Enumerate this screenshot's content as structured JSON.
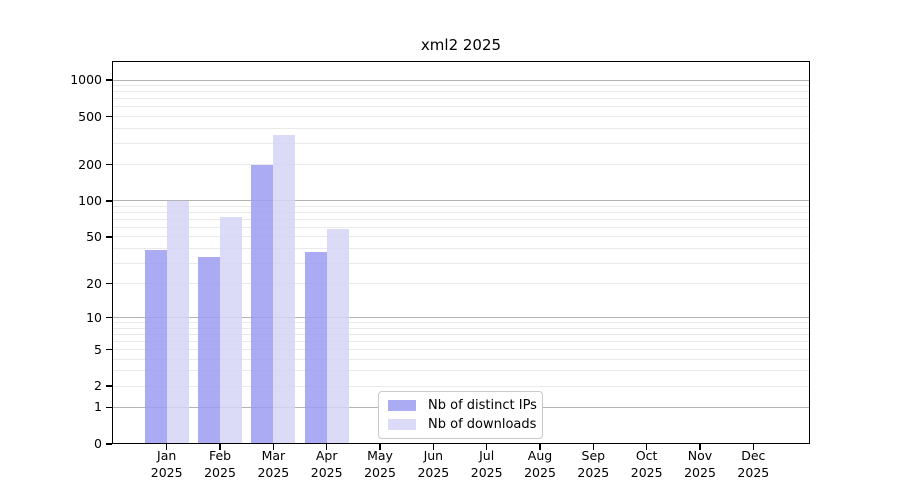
{
  "chart_data": {
    "type": "bar",
    "title": "xml2 2025",
    "categories": [
      "Jan 2025",
      "Feb 2025",
      "Mar 2025",
      "Apr 2025",
      "May 2025",
      "Jun 2025",
      "Jul 2025",
      "Aug 2025",
      "Sep 2025",
      "Oct 2025",
      "Nov 2025",
      "Dec 2025"
    ],
    "series": [
      {
        "name": "Nb of distinct IPs",
        "color": "#9c9cf2",
        "values": [
          39,
          34,
          200,
          37,
          0,
          0,
          0,
          0,
          0,
          0,
          0,
          0
        ]
      },
      {
        "name": "Nb of downloads",
        "color": "#d5d5f7",
        "values": [
          100,
          73,
          350,
          58,
          0,
          0,
          0,
          0,
          0,
          0,
          0,
          0
        ]
      }
    ],
    "xlabel": "",
    "ylabel": "",
    "y_ticks": [
      0,
      1,
      2,
      5,
      10,
      20,
      50,
      100,
      200,
      500,
      1000
    ],
    "y_scale": "log10(value+1)",
    "ylim": [
      0,
      1430
    ],
    "grid": {
      "horizontal": true,
      "major_at": [
        1,
        10,
        100,
        1000
      ],
      "minor_at": [
        2,
        3,
        4,
        5,
        6,
        7,
        8,
        9,
        20,
        30,
        40,
        50,
        60,
        70,
        80,
        90,
        200,
        300,
        400,
        500,
        600,
        700,
        800,
        900
      ]
    },
    "legend_position": "bottom-center",
    "colors": {
      "bar_dark": "#9c9cf2",
      "bar_light": "#d5d5f7",
      "grid_major": "#b3b3b3",
      "grid_minor": "#e9e9e9"
    }
  }
}
